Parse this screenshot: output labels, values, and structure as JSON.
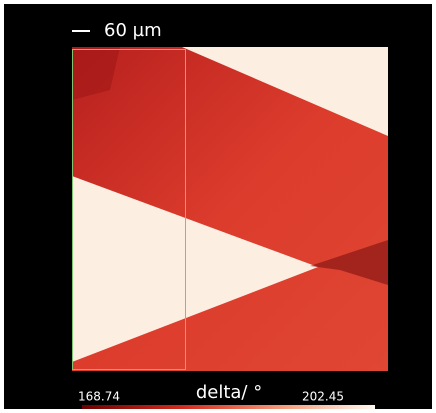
{
  "scale_bar": {
    "label": "60 µm"
  },
  "colorbar": {
    "min": 168.74,
    "max": 202.45,
    "label": "delta/ °"
  }
}
